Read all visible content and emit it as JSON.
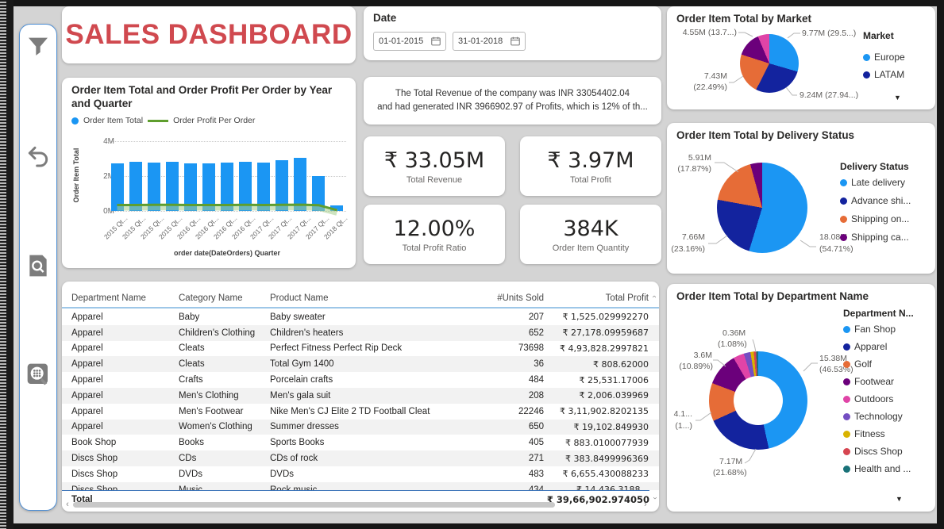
{
  "header": {
    "title_word1": "SALES",
    "title_word2": "DASHBOARD",
    "accent_color": "#d0494f"
  },
  "sidebar": {
    "icons": [
      "filter-icon",
      "undo-arrow-icon",
      "document-search-icon",
      "grid-magnifier-icon"
    ]
  },
  "date_panel": {
    "title": "Date",
    "from": "01-01-2015",
    "to": "31-01-2018"
  },
  "narrative": {
    "line1": "The Total Revenue of the company was INR 33054402.04",
    "line2": "and had generated INR 3966902.97 of Profits, which is 12% of th..."
  },
  "kpis": [
    {
      "value": "₹ 33.05M",
      "label": "Total Revenue"
    },
    {
      "value": "₹ 3.97M",
      "label": "Total Profit"
    },
    {
      "value": "12.00%",
      "label": "Total Profit Ratio"
    },
    {
      "value": "384K",
      "label": "Order Item Quantity"
    }
  ],
  "chart_data": [
    {
      "type": "bar",
      "title": "Order Item Total and Order Profit Per Order by Year and Quarter",
      "categories": [
        "2015 Qt...",
        "2015 Qt...",
        "2015 Qt...",
        "2015 Qt...",
        "2016 Qt...",
        "2016 Qt...",
        "2016 Qt...",
        "2016 Qt...",
        "2017 Qt...",
        "2017 Qt...",
        "2017 Qt...",
        "2017 Qt...",
        "2018 Qt..."
      ],
      "series": [
        {
          "name": "Order Item Total",
          "type": "bar",
          "color": "#1b96f3",
          "unit": "M",
          "values": [
            2.75,
            2.8,
            2.78,
            2.83,
            2.73,
            2.73,
            2.79,
            2.83,
            2.76,
            2.9,
            3.05,
            2.0,
            0.3
          ]
        },
        {
          "name": "Order Profit Per Order",
          "type": "line",
          "color": "#5f9e2e",
          "unit": "M",
          "values": [
            0.34,
            0.34,
            0.35,
            0.35,
            0.34,
            0.34,
            0.34,
            0.35,
            0.34,
            0.35,
            0.36,
            0.33,
            0.05
          ]
        }
      ],
      "ylabel": "Order Item Total",
      "xlabel": "order date(DateOrders) Quarter",
      "yticks": [
        "4M",
        "2M",
        "0M"
      ],
      "ylim": [
        0,
        4
      ],
      "grid": "dotted horizontal"
    },
    {
      "type": "pie",
      "title": "Order Item Total by Market",
      "legend_title": "Market",
      "legend_position": "right",
      "slices": [
        {
          "label": "Europe",
          "color": "#1b96f3",
          "value": "9.77M",
          "pct": 29.5
        },
        {
          "label": "LATAM",
          "color": "#13239e",
          "value": "9.24M",
          "pct": 27.94
        },
        {
          "label": "",
          "color": "#e66c37",
          "value": "7.43M",
          "pct": 22.49
        },
        {
          "label": "",
          "color": "#6b007b",
          "value": "4.55M",
          "pct": 13.7
        },
        {
          "label": "",
          "color": "#e044a7",
          "value": "",
          "pct": 6.37
        }
      ],
      "callouts": {
        "top_right": "9.77M (29.5...)",
        "bottom_right": "9.24M (27.94...)",
        "left_line1": "7.43M",
        "left_line2": "(22.49%)",
        "top_left": "4.55M (13.7...)"
      }
    },
    {
      "type": "pie",
      "title": "Order Item Total by Delivery Status",
      "legend_title": "Delivery Status",
      "legend_position": "right",
      "slices": [
        {
          "label": "Late delivery",
          "color": "#1b96f3",
          "value": "18.08M",
          "pct": 54.71
        },
        {
          "label": "Advance shi...",
          "color": "#13239e",
          "value": "7.66M",
          "pct": 23.16
        },
        {
          "label": "Shipping on...",
          "color": "#e66c37",
          "value": "5.91M",
          "pct": 17.87
        },
        {
          "label": "Shipping ca...",
          "color": "#6b007b",
          "value": "",
          "pct": 4.26
        }
      ],
      "callouts": {
        "top_left_line1": "5.91M",
        "top_left_line2": "(17.87%)",
        "bottom_left_line1": "7.66M",
        "bottom_left_line2": "(23.16%)",
        "bottom_right_line1": "18.08M",
        "bottom_right_line2": "(54.71%)"
      }
    },
    {
      "type": "pie",
      "subtype": "donut",
      "title": "Order Item Total by Department Name",
      "legend_title": "Department N...",
      "legend_position": "right",
      "slices": [
        {
          "label": "Fan Shop",
          "color": "#1b96f3",
          "value": "15.38M",
          "pct": 46.53
        },
        {
          "label": "Apparel",
          "color": "#13239e",
          "value": "7.17M",
          "pct": 21.68
        },
        {
          "label": "Golf",
          "color": "#e66c37",
          "value": "4.1...",
          "pct": 12.54
        },
        {
          "label": "Footwear",
          "color": "#6b007b",
          "value": "3.6M",
          "pct": 10.89
        },
        {
          "label": "Outdoors",
          "color": "#e044a7",
          "value": "",
          "pct": 3.6
        },
        {
          "label": "Technology",
          "color": "#744ec2",
          "value": "",
          "pct": 2.2
        },
        {
          "label": "Fitness",
          "color": "#d9b300",
          "value": "0.36M",
          "pct": 1.08
        },
        {
          "label": "Discs Shop",
          "color": "#d64550",
          "value": "",
          "pct": 0.8
        },
        {
          "label": "Health and ...",
          "color": "#197278",
          "value": "",
          "pct": 0.68
        }
      ],
      "callouts": {
        "right_line1": "15.38M",
        "right_line2": "(46.53%)",
        "top_line1": "0.36M",
        "top_line2": "(1.08%)",
        "top_left_line1": "3.6M",
        "top_left_line2": "(10.89%)",
        "left_line1": "4.1...",
        "left_line2": "(1...)",
        "bottom_line1": "7.17M",
        "bottom_line2": "(21.68%)"
      }
    }
  ],
  "table": {
    "columns": [
      "Department Name",
      "Category Name",
      "Product Name",
      "#Units Sold",
      "Total Profit"
    ],
    "rows": [
      [
        "Apparel",
        "Baby",
        "Baby sweater",
        "207",
        "₹ 1,525.029992270"
      ],
      [
        "Apparel",
        "Children's Clothing",
        "Children's heaters",
        "652",
        "₹ 27,178.09959687"
      ],
      [
        "Apparel",
        "Cleats",
        "Perfect Fitness Perfect Rip Deck",
        "73698",
        "₹ 4,93,828.2997821"
      ],
      [
        "Apparel",
        "Cleats",
        "Total Gym 1400",
        "36",
        "₹ 808.62000"
      ],
      [
        "Apparel",
        "Crafts",
        "Porcelain crafts",
        "484",
        "₹ 25,531.17006"
      ],
      [
        "Apparel",
        "Men's Clothing",
        "Men's gala suit",
        "208",
        "₹ 2,006.039969"
      ],
      [
        "Apparel",
        "Men's Footwear",
        "Nike Men's CJ Elite 2 TD Football Cleat",
        "22246",
        "₹ 3,11,902.8202135"
      ],
      [
        "Apparel",
        "Women's Clothing",
        "Summer dresses",
        "650",
        "₹ 19,102.849930"
      ],
      [
        "Book Shop",
        "Books",
        "Sports Books",
        "405",
        "₹ 883.0100077939"
      ],
      [
        "Discs Shop",
        "CDs",
        "CDs of rock",
        "271",
        "₹ 383.8499996369"
      ],
      [
        "Discs Shop",
        "DVDs",
        "DVDs",
        "483",
        "₹ 6,655.430088233"
      ],
      [
        "Discs Shop",
        "Music",
        "Rock music",
        "434",
        "₹ 14,436.3188..."
      ]
    ],
    "total_label": "Total",
    "total_value": "₹ 39,66,902.974050"
  }
}
